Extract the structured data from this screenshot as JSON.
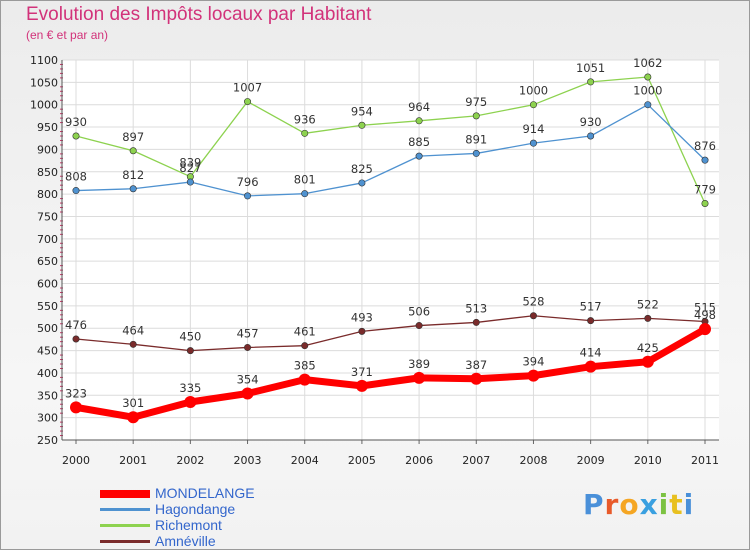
{
  "title": "Evolution des Impôts locaux par Habitant",
  "subtitle": "(en € et par an)",
  "logo": [
    "P",
    "r",
    "o",
    "x",
    "i",
    "t",
    "i"
  ],
  "chart_data": {
    "type": "line",
    "title": "Evolution des Impôts locaux par Habitant",
    "subtitle": "(en € et par an)",
    "categories": [
      "2000",
      "2001",
      "2002",
      "2003",
      "2004",
      "2005",
      "2006",
      "2007",
      "2008",
      "2009",
      "2010",
      "2011"
    ],
    "ylim": [
      250,
      1100
    ],
    "yticks": [
      "250",
      "300",
      "350",
      "400",
      "450",
      "500",
      "550",
      "600",
      "650",
      "700",
      "750",
      "800",
      "850",
      "900",
      "950",
      "1000",
      "1050",
      "1100"
    ],
    "grid": true,
    "legend_position": "bottom-left",
    "series": [
      {
        "name": "MONDELANGE",
        "color": "#ff0000",
        "values": [
          323,
          301,
          335,
          354,
          385,
          371,
          389,
          387,
          394,
          414,
          425,
          498
        ],
        "labels": [
          "323",
          "301",
          "335",
          "354",
          "385",
          "371",
          "389",
          "387",
          "394",
          "414",
          "425",
          "498"
        ]
      },
      {
        "name": "Hagondange",
        "color": "#4f92d0",
        "values": [
          808,
          812,
          827,
          796,
          801,
          825,
          885,
          891,
          914,
          930,
          1000,
          876
        ],
        "labels": [
          "808",
          "812",
          "827",
          "796",
          "801",
          "825",
          "885",
          "891",
          "914",
          "930",
          "1000",
          "876"
        ]
      },
      {
        "name": "Richemont",
        "color": "#8dd24f",
        "values": [
          930,
          897,
          839,
          1007,
          936,
          954,
          964,
          975,
          1000,
          1051,
          1062,
          779
        ],
        "labels": [
          "930",
          "897",
          "839",
          "1007",
          "936",
          "954",
          "964",
          "975",
          "1000",
          "1051",
          "1062",
          "779"
        ]
      },
      {
        "name": "Amnéville",
        "color": "#7a2b2b",
        "values": [
          476,
          464,
          450,
          457,
          461,
          493,
          506,
          513,
          528,
          517,
          522,
          515
        ],
        "labels": [
          "476",
          "464",
          "450",
          "457",
          "461",
          "493",
          "506",
          "513",
          "528",
          "517",
          "522",
          "515"
        ]
      }
    ]
  }
}
